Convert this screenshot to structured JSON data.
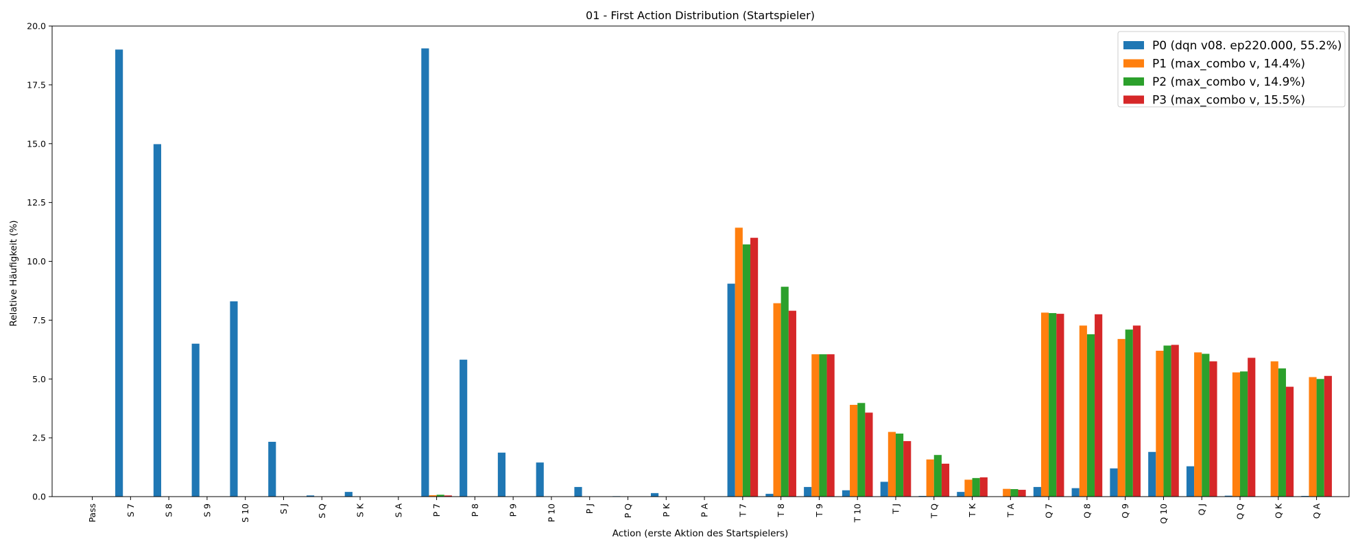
{
  "chart_data": {
    "type": "bar",
    "title": "01 - First Action Distribution (Startspieler)",
    "xlabel": "Action (erste Aktion des Startspielers)",
    "ylabel": "Relative Häufigkeit (%)",
    "ylim": [
      0,
      20
    ],
    "yticks": [
      "0.0",
      "2.5",
      "5.0",
      "7.5",
      "10.0",
      "12.5",
      "15.0",
      "17.5",
      "20.0"
    ],
    "grid": false,
    "legend_position": "top-right",
    "categories": [
      "Pass",
      "S 7",
      "S 8",
      "S 9",
      "S 10",
      "S J",
      "S Q",
      "S K",
      "S A",
      "P 7",
      "P 8",
      "P 9",
      "P 10",
      "P J",
      "P Q",
      "P K",
      "P A",
      "T 7",
      "T 8",
      "T 9",
      "T 10",
      "T J",
      "T Q",
      "T K",
      "T A",
      "Q 7",
      "Q 8",
      "Q 9",
      "Q 10",
      "Q J",
      "Q Q",
      "Q K",
      "Q A"
    ],
    "series": [
      {
        "name": "P0 (dqn v08. ep220.000, 55.2%)",
        "color": "#1f77b4",
        "values": [
          0,
          19.0,
          14.98,
          6.5,
          8.3,
          2.33,
          0.05,
          0.2,
          0,
          19.05,
          5.82,
          1.87,
          1.45,
          0.41,
          0.02,
          0.15,
          0,
          9.05,
          0.12,
          0.41,
          0.27,
          0.63,
          0.03,
          0.2,
          0,
          0.41,
          0.36,
          1.2,
          1.9,
          1.29,
          0.04,
          0,
          0.03
        ]
      },
      {
        "name": "P1 (max_combo v, 14.4%)",
        "color": "#ff7f0e",
        "values": [
          0,
          0,
          0,
          0,
          0,
          0,
          0,
          0,
          0,
          0.06,
          0,
          0,
          0,
          0,
          0,
          0,
          0,
          11.43,
          8.22,
          6.05,
          3.9,
          2.75,
          1.58,
          0.72,
          0.33,
          7.82,
          7.27,
          6.7,
          6.2,
          6.13,
          5.28,
          5.75,
          5.08
        ]
      },
      {
        "name": "P2 (max_combo v, 14.9%)",
        "color": "#2ca02c",
        "values": [
          0,
          0,
          0,
          0,
          0,
          0,
          0,
          0,
          0,
          0.08,
          0,
          0,
          0,
          0,
          0,
          0,
          0,
          10.72,
          8.92,
          6.05,
          3.98,
          2.68,
          1.77,
          0.79,
          0.32,
          7.8,
          6.9,
          7.1,
          6.42,
          6.07,
          5.32,
          5.45,
          5.0
        ]
      },
      {
        "name": "P3 (max_combo v, 15.5%)",
        "color": "#d62728",
        "values": [
          0,
          0,
          0,
          0,
          0,
          0,
          0,
          0,
          0,
          0.05,
          0,
          0,
          0,
          0,
          0,
          0,
          0,
          11.0,
          7.9,
          6.05,
          3.57,
          2.36,
          1.4,
          0.82,
          0.29,
          7.77,
          7.75,
          7.27,
          6.45,
          5.75,
          5.9,
          4.67,
          5.13
        ]
      }
    ]
  }
}
